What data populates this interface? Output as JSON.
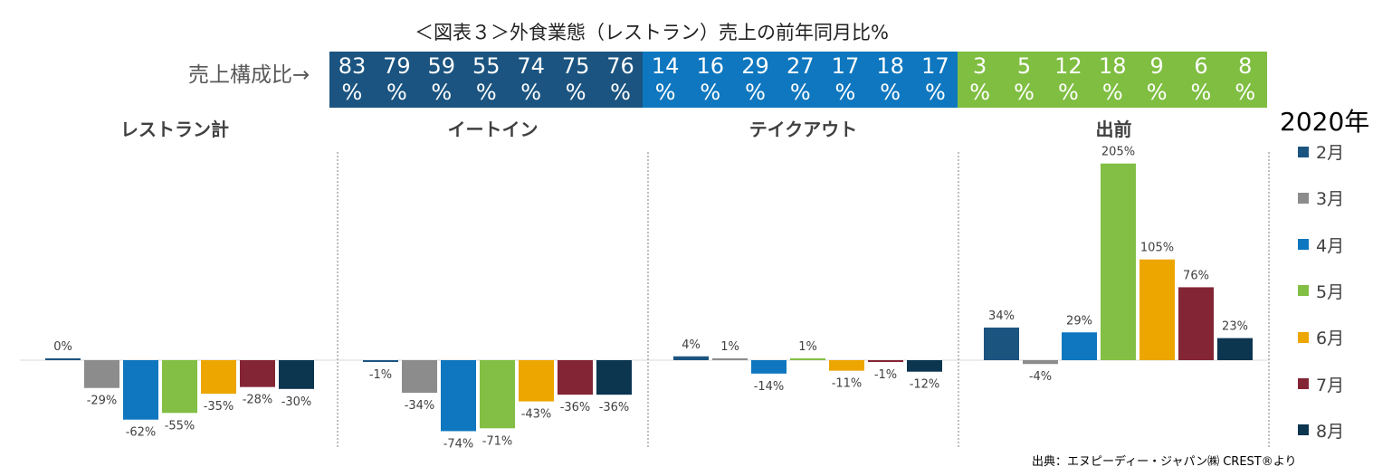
{
  "title": "＜図表３＞外食業態（レストラン）売上の前年同月比%",
  "composition_label": "売上構成比→",
  "legend": {
    "title": "2020年",
    "months": [
      "2月",
      "3月",
      "4月",
      "5月",
      "6月",
      "7月",
      "8月"
    ],
    "colors": [
      "#1c5480",
      "#8c8c8c",
      "#0f77bf",
      "#82bf44",
      "#eda600",
      "#842535",
      "#0c3550"
    ]
  },
  "source": "出典：エヌピーディー・ジャパン㈱ CREST®より",
  "chart_data": {
    "type": "bar",
    "categories": [
      "2月",
      "3月",
      "4月",
      "5月",
      "6月",
      "7月",
      "8月"
    ],
    "ylabel": "",
    "panels": [
      {
        "name": "レストラン計",
        "header_color": "#1b5480",
        "share": [
          "83\n%",
          "79\n%",
          "59\n%",
          "55\n%",
          "74\n%",
          "75\n%",
          "76\n%"
        ],
        "values": [
          0,
          -29,
          -62,
          -55,
          -35,
          -28,
          -30
        ],
        "labels": [
          "0%",
          "-29%",
          "-62%",
          "-55%",
          "-35%",
          "-28%",
          "-30%"
        ]
      },
      {
        "name": "イートイン",
        "header_color": "#1b5480",
        "share": [
          "",
          "",
          "",
          "",
          "",
          "",
          ""
        ],
        "values": [
          -1,
          -34,
          -74,
          -71,
          -43,
          -36,
          -36
        ],
        "labels": [
          "-1%",
          "-34%",
          "-74%",
          "-71%",
          "-43%",
          "-36%",
          "-36%"
        ]
      },
      {
        "name": "テイクアウト",
        "header_color": "#0f77bf",
        "share": [
          "14\n%",
          "16\n%",
          "29\n%",
          "27\n%",
          "17\n%",
          "18\n%",
          "17\n%"
        ],
        "values": [
          4,
          1,
          -14,
          1,
          -11,
          -1,
          -12
        ],
        "labels": [
          "4%",
          "1%",
          "-14%",
          "1%",
          "-11%",
          "-1%",
          "-12%"
        ]
      },
      {
        "name": "出前",
        "header_color": "#7fbe41",
        "share": [
          "3\n%",
          "5\n%",
          "12\n%",
          "18\n%",
          "9\n%",
          "6\n%",
          "8\n%"
        ],
        "values": [
          34,
          -4,
          29,
          205,
          105,
          76,
          23
        ],
        "labels": [
          "34%",
          "-4%",
          "29%",
          "205%",
          "105%",
          "76%",
          "23%"
        ]
      }
    ]
  }
}
